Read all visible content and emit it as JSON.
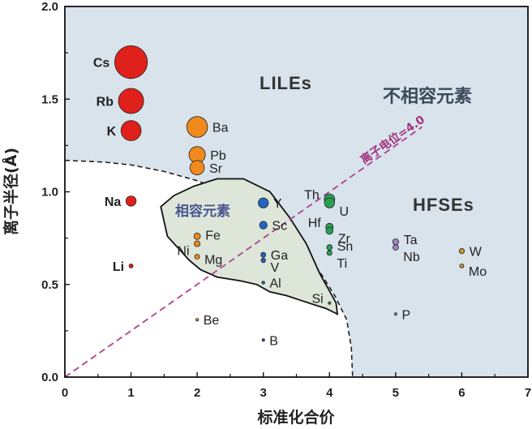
{
  "chart_data": {
    "type": "scatter",
    "xlabel": "标准化合价",
    "ylabel": "离子半径(Å)",
    "xlim": [
      0,
      7
    ],
    "ylim": [
      0,
      2.0
    ],
    "xticks": [
      "0",
      "1",
      "2",
      "3",
      "4",
      "5",
      "6",
      "7"
    ],
    "yticks": [
      "0.0",
      "0.5",
      "1.0",
      "1.5",
      "2.0"
    ],
    "regions": {
      "liles": "LILEs",
      "incompatible": "不相容元素",
      "hfses": "HFSEs",
      "compatible": "相容元素"
    },
    "ionic_potential_line": {
      "label": "离子电位=4.0",
      "slope": 0.25,
      "color": "#b0408f"
    },
    "colors": {
      "region_fill": "#d8e3ec",
      "compatible_fill": "#dde6d9",
      "alkali": "#e0201b",
      "group2": "#f08a1c",
      "trivalent": "#2266c4",
      "tetravalent": "#2aa055",
      "pentavalent": "#9f85c0",
      "hexavalent": "#c8962a",
      "boundary": "#222222"
    },
    "points": [
      {
        "label": "Cs",
        "x": 1,
        "y": 1.7,
        "group": "alkali",
        "bold": true
      },
      {
        "label": "Rb",
        "x": 1,
        "y": 1.49,
        "group": "alkali",
        "bold": true
      },
      {
        "label": "K",
        "x": 1,
        "y": 1.33,
        "group": "alkali",
        "bold": true
      },
      {
        "label": "Na",
        "x": 1,
        "y": 0.95,
        "group": "alkali",
        "bold": true
      },
      {
        "label": "Li",
        "x": 1,
        "y": 0.6,
        "group": "alkali",
        "bold": true
      },
      {
        "label": "Ba",
        "x": 2,
        "y": 1.35,
        "group": "group2",
        "bold": false
      },
      {
        "label": "Pb",
        "x": 2,
        "y": 1.2,
        "group": "group2",
        "bold": false
      },
      {
        "label": "Sr",
        "x": 2,
        "y": 1.13,
        "group": "group2",
        "bold": false
      },
      {
        "label": "Fe",
        "x": 2,
        "y": 0.76,
        "group": "group2",
        "bold": false
      },
      {
        "label": "Ni",
        "x": 2,
        "y": 0.72,
        "group": "group2",
        "bold": false
      },
      {
        "label": "Mg",
        "x": 2,
        "y": 0.65,
        "group": "group2",
        "bold": false
      },
      {
        "label": "Be",
        "x": 2,
        "y": 0.31,
        "group": "group2",
        "bold": false
      },
      {
        "label": "Y",
        "x": 3,
        "y": 0.94,
        "group": "trivalent",
        "bold": false
      },
      {
        "label": "Sc",
        "x": 3,
        "y": 0.82,
        "group": "trivalent",
        "bold": false
      },
      {
        "label": "Ga",
        "x": 3,
        "y": 0.66,
        "group": "trivalent",
        "bold": false
      },
      {
        "label": "V",
        "x": 3,
        "y": 0.63,
        "group": "trivalent",
        "bold": false
      },
      {
        "label": "Al",
        "x": 3,
        "y": 0.51,
        "group": "trivalent",
        "bold": false
      },
      {
        "label": "B",
        "x": 3,
        "y": 0.2,
        "group": "trivalent",
        "bold": false
      },
      {
        "label": "Th",
        "x": 4,
        "y": 0.96,
        "group": "tetravalent",
        "bold": false
      },
      {
        "label": "U",
        "x": 4,
        "y": 0.94,
        "group": "tetravalent",
        "bold": false
      },
      {
        "label": "Hf",
        "x": 4,
        "y": 0.81,
        "group": "tetravalent",
        "bold": false
      },
      {
        "label": "Zr",
        "x": 4,
        "y": 0.79,
        "group": "tetravalent",
        "bold": false
      },
      {
        "label": "Sn",
        "x": 4,
        "y": 0.7,
        "group": "tetravalent",
        "bold": false
      },
      {
        "label": "Ti",
        "x": 4,
        "y": 0.67,
        "group": "tetravalent",
        "bold": false
      },
      {
        "label": "Si",
        "x": 4,
        "y": 0.4,
        "group": "tetravalent",
        "bold": false
      },
      {
        "label": "Ta",
        "x": 5,
        "y": 0.73,
        "group": "pentavalent",
        "bold": false
      },
      {
        "label": "Nb",
        "x": 5,
        "y": 0.7,
        "group": "pentavalent",
        "bold": false
      },
      {
        "label": "P",
        "x": 5,
        "y": 0.34,
        "group": "pentavalent",
        "bold": false
      },
      {
        "label": "W",
        "x": 6,
        "y": 0.68,
        "group": "hexavalent",
        "bold": false
      },
      {
        "label": "Mo",
        "x": 6,
        "y": 0.6,
        "group": "hexavalent",
        "bold": false
      }
    ]
  }
}
